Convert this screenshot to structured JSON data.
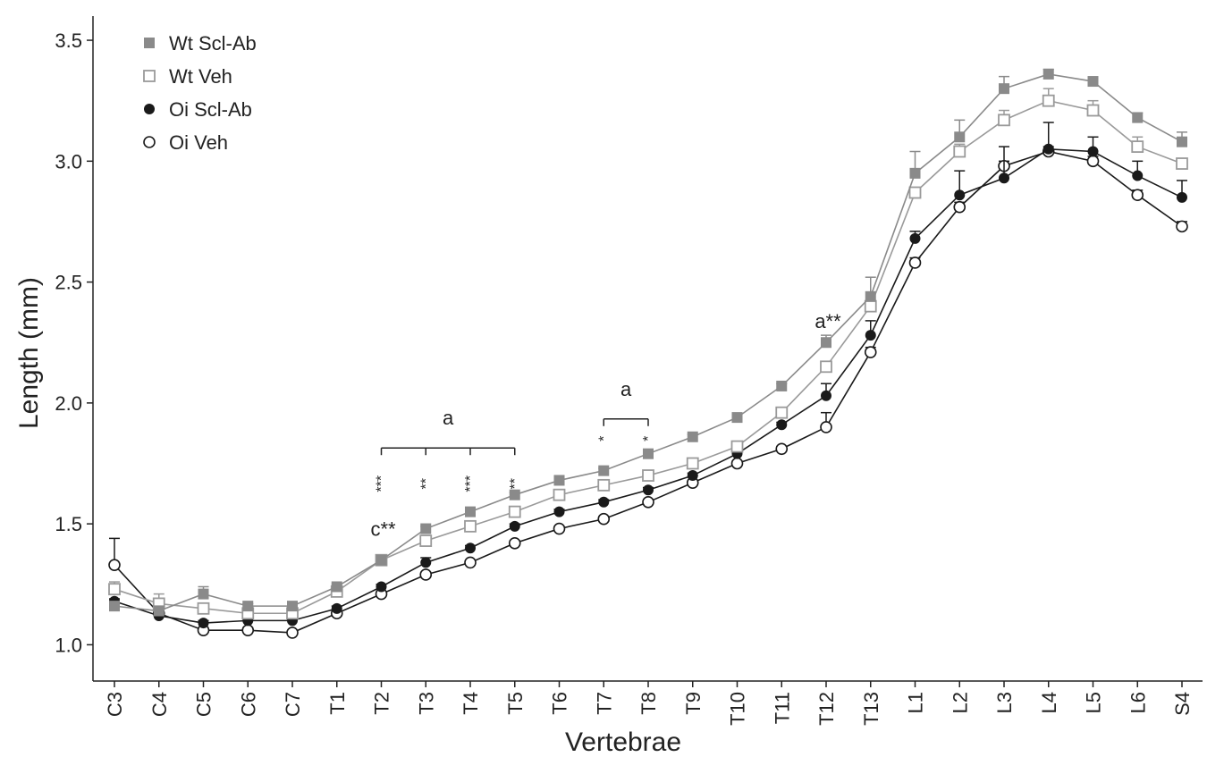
{
  "chart_data": {
    "type": "line",
    "title": "",
    "xlabel": "Vertebrae",
    "ylabel": "Length (mm)",
    "ylim": [
      0.85,
      3.6
    ],
    "yticks": [
      "1.0",
      "1.5",
      "2.0",
      "2.5",
      "3.0",
      "3.5"
    ],
    "grid": false,
    "legend_position": "top-left",
    "categories": [
      "C3",
      "C4",
      "C5",
      "C6",
      "C7",
      "T1",
      "T2",
      "T3",
      "T4",
      "T5",
      "T6",
      "T7",
      "T8",
      "T9",
      "T10",
      "T11",
      "T12",
      "T13",
      "L1",
      "L2",
      "L3",
      "L4",
      "L5",
      "L6",
      "S4"
    ],
    "series": [
      {
        "name": "Wt Scl-Ab",
        "color": "#8a8a8a",
        "marker": "filled-square",
        "values": [
          1.16,
          1.14,
          1.21,
          1.16,
          1.16,
          1.24,
          1.35,
          1.48,
          1.55,
          1.62,
          1.68,
          1.72,
          1.79,
          1.86,
          1.94,
          2.07,
          2.25,
          2.44,
          2.95,
          3.1,
          3.3,
          3.36,
          3.33,
          3.18,
          3.08
        ],
        "err": [
          0.01,
          0.02,
          0.03,
          0.01,
          0.01,
          0.01,
          0.01,
          0.01,
          0.01,
          0.01,
          0.01,
          0.01,
          0.01,
          0.01,
          0.01,
          0.01,
          0.03,
          0.08,
          0.09,
          0.07,
          0.05,
          0.02,
          0.01,
          0.02,
          0.04
        ]
      },
      {
        "name": "Wt Veh",
        "color": "#9a9a9a",
        "marker": "open-square",
        "values": [
          1.23,
          1.17,
          1.15,
          1.13,
          1.13,
          1.22,
          1.35,
          1.43,
          1.49,
          1.55,
          1.62,
          1.66,
          1.7,
          1.75,
          1.82,
          1.96,
          2.15,
          2.4,
          2.87,
          3.04,
          3.17,
          3.25,
          3.21,
          3.06,
          2.99
        ],
        "err": [
          0.03,
          0.04,
          0.02,
          0.01,
          0.01,
          0.01,
          0.01,
          0.01,
          0.01,
          0.01,
          0.01,
          0.01,
          0.01,
          0.01,
          0.01,
          0.01,
          0.01,
          0.02,
          0.02,
          0.03,
          0.04,
          0.05,
          0.04,
          0.04,
          0.02
        ]
      },
      {
        "name": "Oi Scl-Ab",
        "color": "#1a1a1a",
        "marker": "filled-circle",
        "values": [
          1.18,
          1.12,
          1.09,
          1.1,
          1.1,
          1.15,
          1.24,
          1.34,
          1.4,
          1.49,
          1.55,
          1.59,
          1.64,
          1.7,
          1.79,
          1.91,
          2.03,
          2.28,
          2.68,
          2.86,
          2.93,
          3.05,
          3.04,
          2.94,
          2.85
        ],
        "err": [
          0.01,
          0.01,
          0.01,
          0.01,
          0.01,
          0.01,
          0.01,
          0.02,
          0.01,
          0.01,
          0.01,
          0.01,
          0.01,
          0.01,
          0.01,
          0.01,
          0.05,
          0.06,
          0.03,
          0.1,
          0.13,
          0.11,
          0.06,
          0.06,
          0.07
        ]
      },
      {
        "name": "Oi Veh",
        "color": "#1a1a1a",
        "marker": "open-circle",
        "values": [
          1.33,
          1.13,
          1.06,
          1.06,
          1.05,
          1.13,
          1.21,
          1.29,
          1.34,
          1.42,
          1.48,
          1.52,
          1.59,
          1.67,
          1.75,
          1.81,
          1.9,
          2.21,
          2.58,
          2.81,
          2.98,
          3.04,
          3.0,
          2.86,
          2.73
        ],
        "err": [
          0.11,
          0.01,
          0.01,
          0.01,
          0.01,
          0.01,
          0.01,
          0.01,
          0.01,
          0.01,
          0.01,
          0.01,
          0.01,
          0.01,
          0.01,
          0.01,
          0.06,
          0.02,
          0.02,
          0.02,
          0.02,
          0.02,
          0.02,
          0.02,
          0.02
        ]
      }
    ],
    "annotations": [
      {
        "text": "c**",
        "at": "T2",
        "y": 1.45
      },
      {
        "text": "a**",
        "at": "T12",
        "y": 2.31
      },
      {
        "text": "a",
        "bracket": [
          "T2",
          "T5"
        ],
        "y": 1.91
      },
      {
        "text": "a",
        "bracket": [
          "T7",
          "T8"
        ],
        "y": 2.03
      }
    ],
    "bracket_stars": [
      {
        "at": "T2",
        "text": "***"
      },
      {
        "at": "T3",
        "text": "**"
      },
      {
        "at": "T4",
        "text": "***"
      },
      {
        "at": "T5",
        "text": "**"
      },
      {
        "at": "T7",
        "text": "*"
      },
      {
        "at": "T8",
        "text": "*"
      }
    ]
  }
}
